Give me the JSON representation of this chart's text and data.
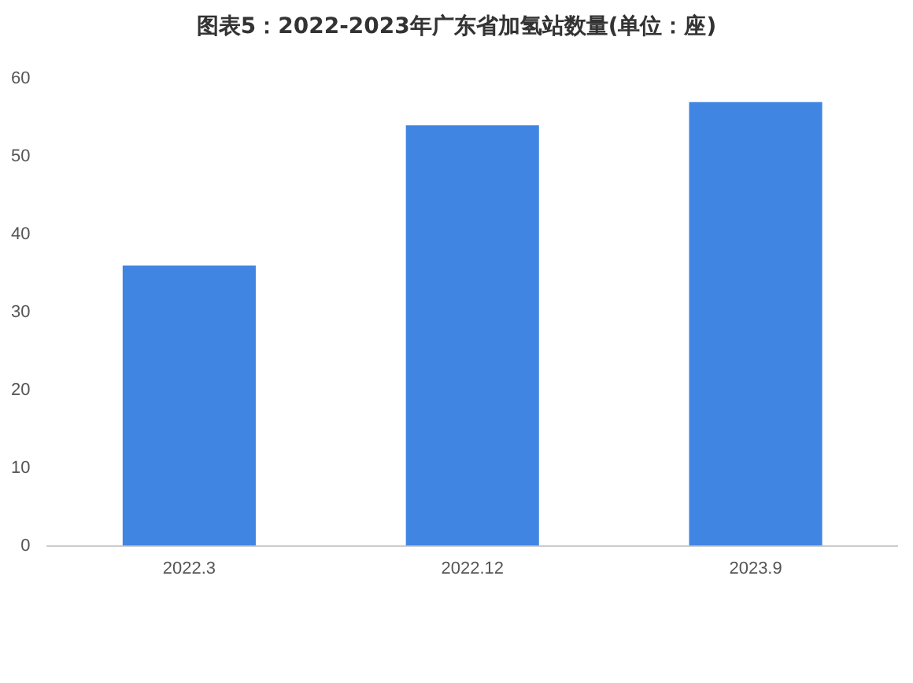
{
  "chart_data": {
    "type": "bar",
    "title": "图表5：2022-2023年广东省加氢站数量(单位：座)",
    "categories": [
      "2022.3",
      "2022.12",
      "2023.9"
    ],
    "values": [
      36,
      54,
      57
    ],
    "color": "#4185e3",
    "ylim": [
      0,
      60
    ],
    "yticks": [
      0,
      10,
      20,
      30,
      40,
      50,
      60
    ],
    "grid": false,
    "legend": false
  }
}
